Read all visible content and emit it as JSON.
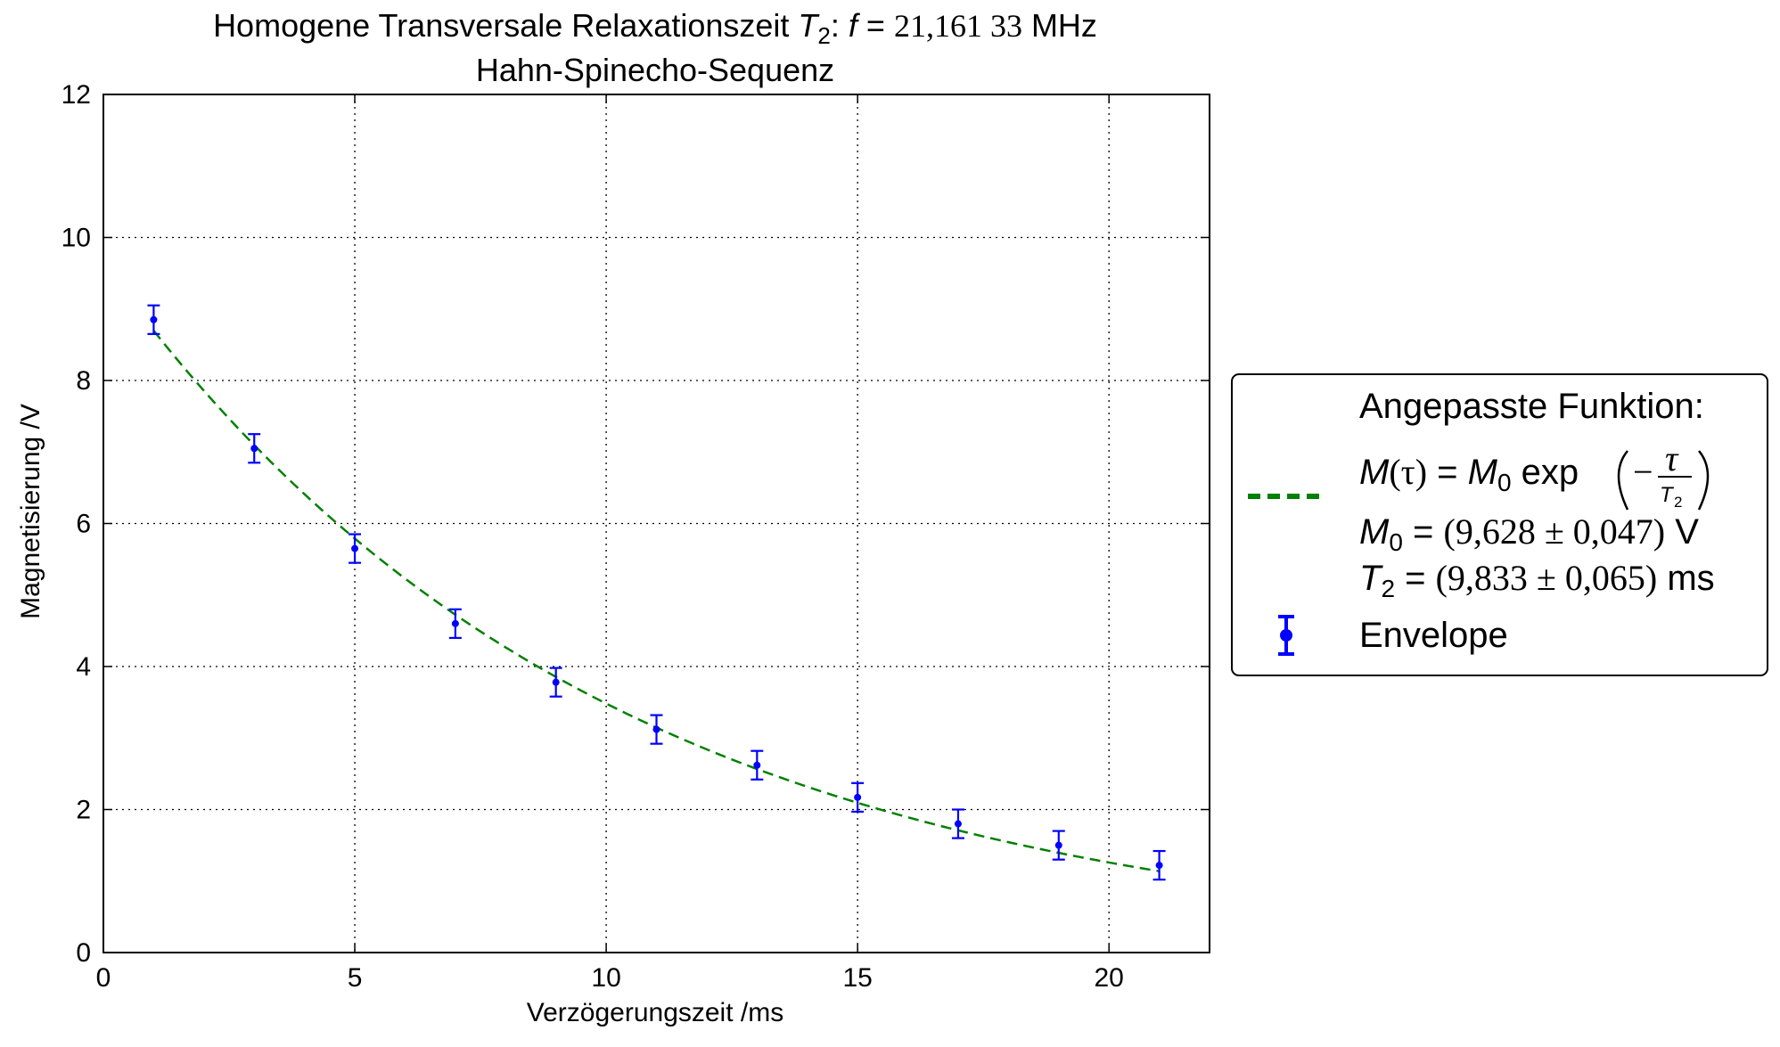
{
  "chart_data": {
    "type": "scatter",
    "title": {
      "line1_prefix": "Homogene Transversale Relaxationszeit ",
      "line1_symbol": "T",
      "line1_subscript": "2",
      "line1_mid": ": ",
      "line1_f": "f",
      "line1_eq": " = ",
      "line1_value": "21,161 33",
      "line1_unit": " MHz",
      "line2": "Hahn-Spinecho-Sequenz"
    },
    "xlabel": "Verzögerungszeit /ms",
    "ylabel": "Magnetisierung /V",
    "xlim": [
      0,
      22
    ],
    "ylim": [
      0,
      12
    ],
    "xticks": [
      0,
      5,
      10,
      15,
      20
    ],
    "yticks": [
      0,
      2,
      4,
      6,
      8,
      10,
      12
    ],
    "xtick_labels": [
      "0",
      "5",
      "10",
      "15",
      "20"
    ],
    "ytick_labels": [
      "0",
      "2",
      "4",
      "6",
      "8",
      "10",
      "12"
    ],
    "grid": true,
    "legend_position": "outside-right",
    "series": [
      {
        "name": "Envelope",
        "kind": "errorbar",
        "color": "#0000ff",
        "x": [
          1,
          3,
          5,
          7,
          9,
          11,
          13,
          15,
          17,
          19,
          21
        ],
        "y": [
          8.85,
          7.05,
          5.65,
          4.6,
          3.78,
          3.12,
          2.62,
          2.17,
          1.8,
          1.5,
          1.22
        ],
        "yerr": [
          0.2,
          0.2,
          0.2,
          0.2,
          0.2,
          0.2,
          0.2,
          0.2,
          0.2,
          0.2,
          0.2
        ]
      },
      {
        "name": "Angepasste Funktion",
        "kind": "fit",
        "color": "#008000",
        "model": "M0*exp(-tau/T2)",
        "M0": 9.628,
        "T2": 9.833,
        "x_range": [
          1,
          21
        ]
      }
    ],
    "legend": {
      "fit_heading": "Angepasste Funktion:",
      "fit_formula": "M(τ) = M0 exp(−τ/T2)",
      "fit_m0": "M0 = (9,628 ± 0,047) V",
      "fit_t2": "T2 = (9,833 ± 0,065) ms",
      "data_label": "Envelope"
    }
  }
}
